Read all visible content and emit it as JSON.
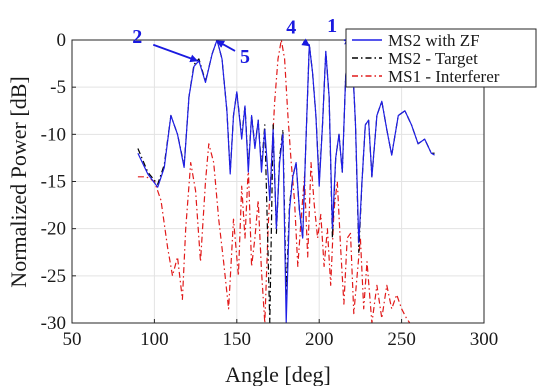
{
  "chart_data": {
    "type": "line",
    "xlabel": "Angle [deg]",
    "ylabel": "Normalized Power [dB]",
    "xlim": [
      50,
      300
    ],
    "ylim": [
      -30,
      0
    ],
    "xticks": [
      50,
      100,
      150,
      200,
      250,
      300
    ],
    "yticks": [
      0,
      -5,
      -10,
      -15,
      -20,
      -25,
      -30
    ],
    "grid": true,
    "legend_position": "top-right",
    "series": [
      {
        "name": "MS2 with ZF",
        "color": "#1f1fe6",
        "style": "solid",
        "x": [
          90,
          96,
          102,
          106,
          110,
          114,
          118,
          121,
          124,
          127,
          131,
          135,
          138,
          141,
          144,
          146,
          148,
          150,
          153,
          155,
          157,
          159,
          161,
          163,
          165,
          167,
          170,
          172,
          174,
          176,
          178,
          180,
          182,
          184,
          186,
          188,
          190,
          192,
          194,
          196,
          198,
          200,
          202,
          204,
          206,
          208,
          210,
          212,
          214,
          216,
          218,
          220,
          222,
          224,
          226,
          228,
          230,
          232,
          235,
          238,
          241,
          244,
          248,
          252,
          256,
          260,
          264,
          268,
          270
        ],
        "values": [
          -12.0,
          -14.2,
          -15.6,
          -13.5,
          -8.0,
          -10.0,
          -13.5,
          -6.0,
          -2.8,
          -2.2,
          -4.5,
          -1.5,
          0.0,
          -2.0,
          -7.5,
          -14.2,
          -8.0,
          -5.5,
          -10.5,
          -7.0,
          -14.0,
          -8.0,
          -11.5,
          -8.5,
          -14.0,
          -9.5,
          -17.0,
          -9.5,
          -20.0,
          -13.0,
          -10.0,
          -30.0,
          -18.0,
          -14.5,
          -13.0,
          -18.0,
          -21.0,
          -10.5,
          -0.5,
          -3.5,
          -8.0,
          -15.5,
          -9.0,
          -1.2,
          -6.0,
          -20.0,
          -12.5,
          -10.0,
          -14.0,
          -4.0,
          -0.3,
          -1.5,
          -9.0,
          -21.5,
          -15.0,
          -9.0,
          -8.5,
          -14.5,
          -8.0,
          -6.5,
          -9.5,
          -12.2,
          -8.0,
          -7.5,
          -9.0,
          -11.0,
          -10.5,
          -12.0,
          -12.2
        ]
      },
      {
        "name": "MS2 - Target",
        "color": "#000000",
        "style": "dashdot",
        "x": [
          90,
          96,
          102,
          106,
          110,
          114,
          118,
          121,
          124,
          127,
          131,
          135,
          138,
          141,
          144,
          146,
          148,
          150,
          153,
          155,
          157,
          159,
          161,
          163,
          165,
          167,
          170,
          172,
          174,
          176,
          178,
          180,
          182,
          184,
          186,
          188,
          190,
          192,
          194,
          196,
          198,
          200,
          202,
          204,
          206,
          208,
          210,
          212,
          214,
          216,
          218,
          220,
          222,
          224,
          226,
          228,
          230,
          232,
          235,
          238,
          241,
          244,
          248,
          252,
          256,
          260,
          264,
          268,
          270
        ],
        "values": [
          -11.5,
          -14.0,
          -15.3,
          -13.2,
          -8.0,
          -10.0,
          -13.3,
          -6.0,
          -2.6,
          -2.0,
          -4.4,
          -1.5,
          0.0,
          -2.0,
          -7.5,
          -14.0,
          -8.0,
          -5.5,
          -10.2,
          -7.0,
          -13.5,
          -8.0,
          -11.2,
          -8.5,
          -13.5,
          -9.0,
          -30.0,
          -9.0,
          -20.5,
          -12.5,
          -9.5,
          -27.0,
          -17.5,
          -14.5,
          -13.0,
          -18.0,
          -21.0,
          -10.5,
          -0.5,
          -3.5,
          -8.0,
          -15.0,
          -9.0,
          -1.2,
          -6.0,
          -21.0,
          -12.5,
          -10.0,
          -14.0,
          -4.0,
          -0.3,
          -1.5,
          -9.0,
          -22.5,
          -15.0,
          -9.0,
          -8.5,
          -14.5,
          -8.0,
          -6.5,
          -9.5,
          -12.2,
          -8.0,
          -7.5,
          -9.0,
          -11.0,
          -10.5,
          -12.0,
          -12.0
        ]
      },
      {
        "name": "MS1 - Interferer",
        "color": "#e11a1a",
        "style": "dashdot",
        "x": [
          90,
          95,
          100,
          104,
          108,
          111,
          114,
          117,
          119,
          122,
          125,
          128,
          131,
          133,
          136,
          139,
          142,
          145,
          148,
          151,
          153,
          155,
          157,
          159,
          161,
          163,
          165,
          167,
          169,
          171,
          173,
          175,
          177,
          179,
          181,
          183,
          185,
          187,
          189,
          191,
          193,
          195,
          197,
          199,
          201,
          203,
          205,
          207,
          209,
          211,
          213,
          215,
          217,
          219,
          221,
          223,
          225,
          227,
          229,
          232,
          235,
          238,
          241,
          244,
          247,
          250,
          253,
          255
        ],
        "values": [
          -14.5,
          -14.5,
          -15.0,
          -17.0,
          -22.0,
          -25.0,
          -23.0,
          -27.5,
          -20.0,
          -13.0,
          -16.0,
          -23.5,
          -15.0,
          -11.0,
          -13.0,
          -19.0,
          -23.5,
          -28.5,
          -19.0,
          -25.0,
          -15.5,
          -21.0,
          -13.5,
          -24.0,
          -21.0,
          -17.0,
          -24.5,
          -30.0,
          -20.0,
          -13.0,
          -6.5,
          -2.0,
          0.0,
          -2.0,
          -8.0,
          -13.0,
          -17.0,
          -24.0,
          -19.0,
          -14.5,
          -23.0,
          -13.0,
          -17.5,
          -21.0,
          -18.5,
          -24.0,
          -20.0,
          -26.0,
          -18.0,
          -15.0,
          -22.0,
          -28.0,
          -21.0,
          -20.5,
          -29.0,
          -25.0,
          -21.0,
          -28.5,
          -23.5,
          -30.0,
          -26.0,
          -29.5,
          -26.0,
          -28.5,
          -27.0,
          -28.5,
          -29.5,
          -30.0
        ]
      }
    ],
    "annotations": [
      {
        "label": "1",
        "x": 220,
        "y": -0.4
      },
      {
        "label": "2",
        "x": 126,
        "y": -2.2
      },
      {
        "label": "4",
        "x": 194,
        "y": -0.6
      },
      {
        "label": "5",
        "x": 138,
        "y": -0.1
      }
    ]
  }
}
